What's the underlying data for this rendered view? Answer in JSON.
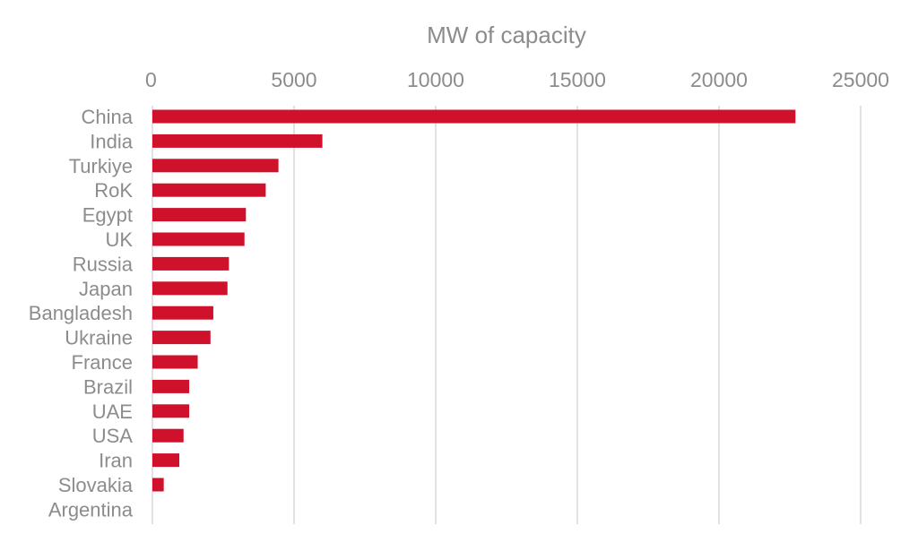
{
  "chart_data": {
    "type": "bar",
    "orientation": "horizontal",
    "title": "",
    "xlabel": "MW of capacity",
    "ylabel": "",
    "xlim": [
      0,
      25000
    ],
    "xticks": [
      0,
      5000,
      10000,
      15000,
      20000,
      25000
    ],
    "grid": true,
    "x_axis_position": "top",
    "bar_color": "#d0112b",
    "categories": [
      "China",
      "India",
      "Turkiye",
      "RoK",
      "Egypt",
      "UK",
      "Russia",
      "Japan",
      "Bangladesh",
      "Ukraine",
      "France",
      "Brazil",
      "UAE",
      "USA",
      "Iran",
      "Slovakia",
      "Argentina"
    ],
    "values": [
      22700,
      6000,
      4450,
      4000,
      3300,
      3250,
      2700,
      2650,
      2150,
      2050,
      1600,
      1300,
      1300,
      1100,
      950,
      400,
      0
    ]
  }
}
